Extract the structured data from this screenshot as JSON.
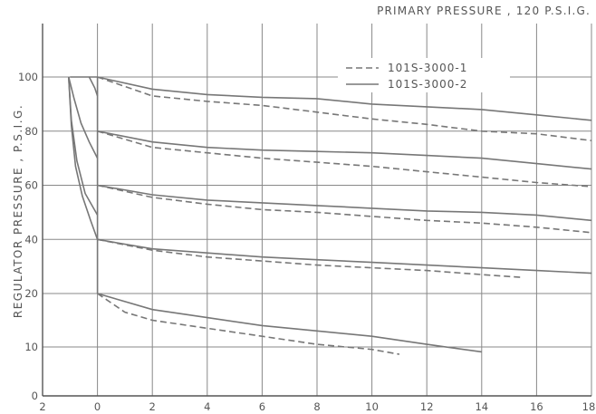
{
  "chart_data": {
    "type": "line",
    "title": "PRIMARY PRESSURE , 120 P.S.I.G.",
    "xlabel": "",
    "ylabel": "REGULATOR PRESSURE , P.S.I.G.",
    "xlim": [
      -2,
      18
    ],
    "ylim": [
      0,
      105
    ],
    "x_ticks": [
      -2,
      0,
      2,
      4,
      6,
      8,
      10,
      12,
      14,
      16,
      18
    ],
    "x_tick_labels": [
      "2",
      "0",
      "2",
      "4",
      "6",
      "8",
      "10",
      "12",
      "14",
      "16",
      "18"
    ],
    "y_ticks": [
      0,
      10,
      20,
      40,
      60,
      80,
      100
    ],
    "y_tick_labels": [
      "0",
      "10",
      "20",
      "40",
      "60",
      "80",
      "100"
    ],
    "grid": true,
    "legend_position": "top-right",
    "legend": [
      {
        "label": "101S-3000-1",
        "style": "dashed"
      },
      {
        "label": "101S-3000-2",
        "style": "solid"
      }
    ],
    "colors": {
      "line": "#777777",
      "grid": "#888888",
      "text": "#555555"
    },
    "series": [
      {
        "name": "101S-3000-2",
        "style": "solid",
        "set_point": 100,
        "x": [
          -1.0,
          -0.5,
          0,
          2,
          4,
          6,
          8,
          10,
          12,
          14,
          16,
          18
        ],
        "y": [
          100,
          100,
          100,
          95.5,
          93.5,
          92.5,
          92,
          90,
          89,
          88,
          86,
          84
        ]
      },
      {
        "name": "101S-3000-1",
        "style": "dashed",
        "set_point": 100,
        "x": [
          0,
          2,
          4,
          6,
          8,
          10,
          12,
          14,
          16,
          18
        ],
        "y": [
          100,
          93,
          91,
          89.5,
          87,
          84.5,
          82.5,
          80,
          79,
          76.5
        ]
      },
      {
        "name": "101S-3000-2",
        "style": "solid",
        "set_point": 80,
        "x": [
          0,
          2,
          4,
          6,
          8,
          10,
          12,
          14,
          16,
          18
        ],
        "y": [
          80,
          76,
          74,
          73,
          72.5,
          72,
          71,
          70,
          68,
          66
        ]
      },
      {
        "name": "101S-3000-1",
        "style": "dashed",
        "set_point": 80,
        "x": [
          0,
          2,
          4,
          6,
          8,
          10,
          12,
          14,
          16,
          18
        ],
        "y": [
          80,
          74,
          72,
          70,
          68.5,
          67,
          65,
          63,
          61,
          59.5
        ]
      },
      {
        "name": "101S-3000-2",
        "style": "solid",
        "set_point": 60,
        "x": [
          0,
          2,
          4,
          6,
          8,
          10,
          12,
          14,
          16,
          18
        ],
        "y": [
          60,
          56.5,
          54.5,
          53.5,
          52.5,
          51.5,
          50.5,
          50,
          49,
          47
        ]
      },
      {
        "name": "101S-3000-1",
        "style": "dashed",
        "set_point": 60,
        "x": [
          0,
          2,
          4,
          6,
          8,
          10,
          12,
          14,
          16,
          18
        ],
        "y": [
          60,
          55.5,
          53,
          51,
          50,
          48.5,
          47,
          46,
          44.5,
          42.5
        ]
      },
      {
        "name": "101S-3000-2",
        "style": "solid",
        "set_point": 40,
        "x": [
          0,
          2,
          4,
          6,
          8,
          10,
          12,
          14,
          16,
          18
        ],
        "y": [
          40,
          36.5,
          35,
          33.5,
          32.5,
          31.5,
          30.5,
          29.5,
          28.5,
          27.5
        ]
      },
      {
        "name": "101S-3000-1",
        "style": "dashed",
        "set_point": 40,
        "x": [
          0,
          2,
          4,
          6,
          8,
          10,
          12,
          14,
          15.4
        ],
        "y": [
          40,
          36,
          33.5,
          32,
          30.5,
          29.5,
          28.5,
          27,
          26
        ]
      },
      {
        "name": "101S-3000-2",
        "style": "solid",
        "set_point": 20,
        "x": [
          0,
          2,
          4,
          6,
          8,
          10,
          12,
          14
        ],
        "y": [
          20,
          17,
          15.5,
          14,
          13,
          12,
          10.5,
          9
        ]
      },
      {
        "name": "101S-3000-1",
        "style": "dashed",
        "set_point": 20,
        "x": [
          0,
          1,
          2,
          4,
          6,
          8,
          10,
          11
        ],
        "y": [
          20,
          16.5,
          15,
          13.5,
          12,
          10.5,
          9.5,
          8.5
        ]
      }
    ],
    "transition_curves": [
      {
        "style": "solid",
        "x": [
          -1.05,
          -0.85,
          -0.6,
          -0.3,
          0
        ],
        "y": [
          100,
          92,
          83,
          76,
          70
        ]
      },
      {
        "style": "solid",
        "x": [
          -1.05,
          -0.95,
          -0.75,
          -0.45,
          0
        ],
        "y": [
          100,
          84,
          69,
          57,
          49
        ]
      },
      {
        "style": "solid",
        "x": [
          -1.05,
          -0.95,
          -0.8,
          -0.55,
          -0.25,
          0
        ],
        "y": [
          100,
          82,
          67,
          56,
          47,
          40
        ]
      },
      {
        "style": "solid",
        "x": [
          -0.3,
          -0.1,
          0
        ],
        "y": [
          100,
          96,
          93
        ]
      },
      {
        "style": "solid",
        "x": [
          0,
          0
        ],
        "y": [
          100,
          20
        ]
      }
    ]
  }
}
